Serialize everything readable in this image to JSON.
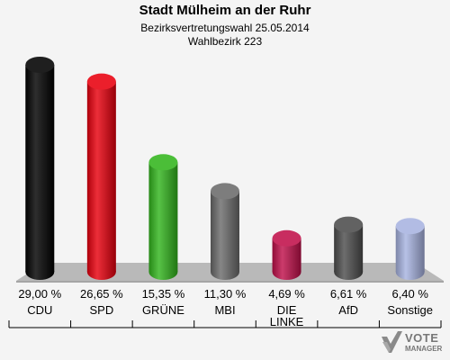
{
  "header": {
    "title": "Stadt Mülheim an der Ruhr",
    "subtitle1": "Bezirksvertretungswahl 25.05.2014",
    "subtitle2": "Wahlbezirk 223"
  },
  "logo": {
    "line1": "VOTE",
    "line2": "MANAGER"
  },
  "chart_data": {
    "type": "bar",
    "title": "Stadt Mülheim an der Ruhr",
    "subtitle": "Bezirksvertretungswahl 25.05.2014 / Wahlbezirk 223",
    "categories": [
      "CDU",
      "SPD",
      "GRÜNE",
      "MBI",
      "DIE LINKE",
      "AfD",
      "Sonstige"
    ],
    "values": [
      29.0,
      26.65,
      15.35,
      11.3,
      4.69,
      6.61,
      6.4
    ],
    "value_labels": [
      "29,00 %",
      "26,65 %",
      "15,35 %",
      "11,30 %",
      "4,69 %",
      "6,61 %",
      "6,40 %"
    ],
    "colors": [
      "#000000",
      "#e8000e",
      "#32b51d",
      "#6b6b6b",
      "#c0104a",
      "#4d4d4d",
      "#a7b3e0"
    ],
    "ylim": [
      0,
      29
    ]
  }
}
